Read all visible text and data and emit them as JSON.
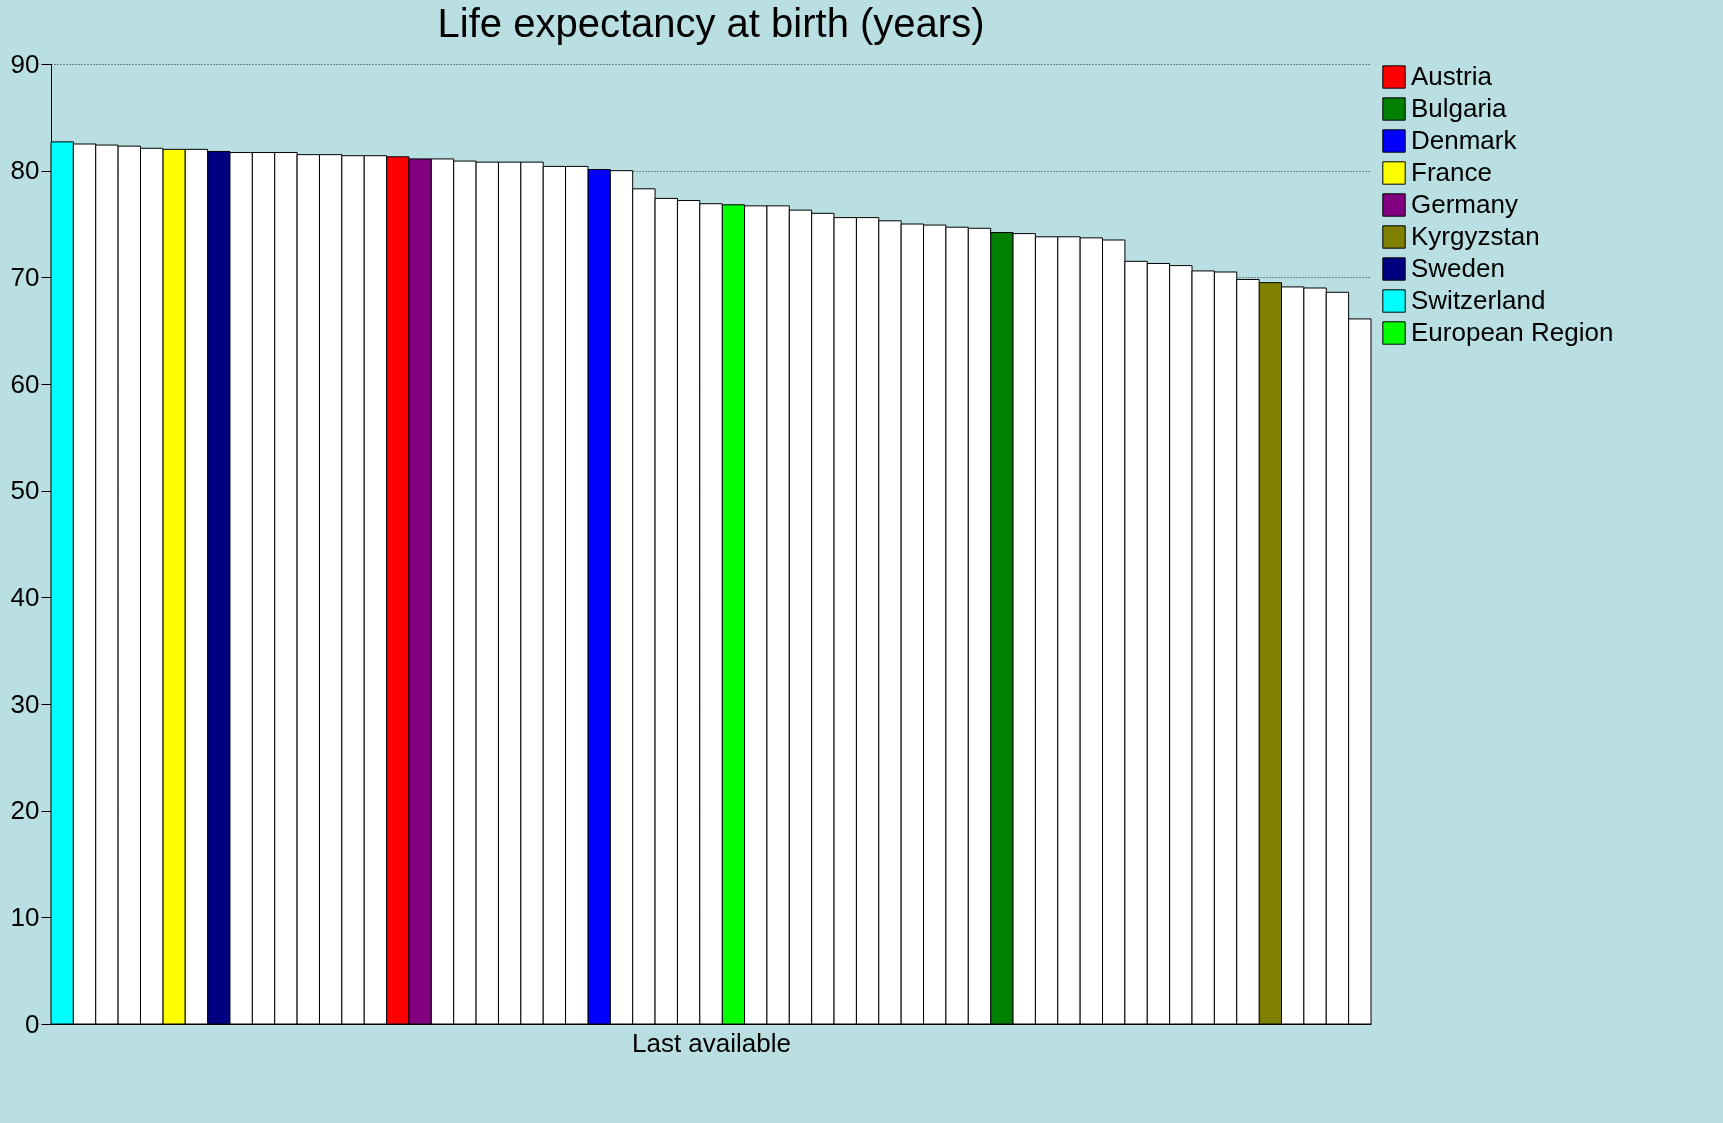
{
  "chart_data": {
    "type": "bar",
    "title": "Life expectancy at birth (years)",
    "xlabel": "Last available",
    "categories": [
      null,
      null,
      null,
      null,
      null,
      null,
      null,
      null,
      null,
      null,
      null,
      null,
      null,
      null,
      null,
      null,
      null,
      null,
      null,
      null,
      null,
      null,
      null,
      null,
      null,
      null,
      null,
      null,
      null,
      null,
      null,
      null,
      null,
      null,
      null,
      null,
      null,
      null,
      null,
      null,
      null,
      null,
      null,
      null,
      null,
      null,
      null,
      null,
      null,
      null,
      null,
      null,
      null,
      null,
      null,
      null,
      null,
      null,
      null
    ],
    "series": [
      {
        "name": "Austria",
        "color": "#ff0000",
        "values": [
          null,
          null,
          null,
          null,
          null,
          null,
          null,
          null,
          null,
          null,
          null,
          null,
          null,
          null,
          null,
          81.3,
          null,
          null,
          null,
          null,
          null,
          null,
          null,
          null,
          null,
          null,
          null,
          null,
          null,
          null,
          null,
          null,
          null,
          null,
          null,
          null,
          null,
          null,
          null,
          null,
          null,
          null,
          null,
          null,
          null,
          null,
          null,
          null,
          null,
          null,
          null,
          null,
          null,
          null,
          null,
          null,
          null,
          null,
          null
        ]
      },
      {
        "name": "Bulgaria",
        "color": "#008000",
        "values": [
          null,
          null,
          null,
          null,
          null,
          null,
          null,
          null,
          null,
          null,
          null,
          null,
          null,
          null,
          null,
          null,
          null,
          null,
          null,
          null,
          null,
          null,
          null,
          null,
          null,
          null,
          null,
          null,
          null,
          null,
          null,
          null,
          null,
          null,
          null,
          null,
          null,
          null,
          null,
          null,
          null,
          null,
          74.2,
          null,
          null,
          null,
          null,
          null,
          null,
          null,
          null,
          null,
          null,
          null,
          null,
          null,
          null,
          null,
          null
        ]
      },
      {
        "name": "Denmark",
        "color": "#0000ff",
        "values": [
          null,
          null,
          null,
          null,
          null,
          null,
          null,
          null,
          null,
          null,
          null,
          null,
          null,
          null,
          null,
          null,
          null,
          null,
          null,
          null,
          null,
          null,
          null,
          null,
          80.1,
          null,
          null,
          null,
          null,
          null,
          null,
          null,
          null,
          null,
          null,
          null,
          null,
          null,
          null,
          null,
          null,
          null,
          null,
          null,
          null,
          null,
          null,
          null,
          null,
          null,
          null,
          null,
          null,
          null,
          null,
          null,
          null,
          null,
          null
        ]
      },
      {
        "name": "France",
        "color": "#ffff00",
        "values": [
          null,
          null,
          null,
          null,
          null,
          82.0,
          null,
          null,
          null,
          null,
          null,
          null,
          null,
          null,
          null,
          null,
          null,
          null,
          null,
          null,
          null,
          null,
          null,
          null,
          null,
          null,
          null,
          null,
          null,
          null,
          null,
          null,
          null,
          null,
          null,
          null,
          null,
          null,
          null,
          null,
          null,
          null,
          null,
          null,
          null,
          null,
          null,
          null,
          null,
          null,
          null,
          null,
          null,
          null,
          null,
          null,
          null,
          null,
          null
        ]
      },
      {
        "name": "Germany",
        "color": "#800080",
        "values": [
          null,
          null,
          null,
          null,
          null,
          null,
          null,
          null,
          null,
          null,
          null,
          null,
          null,
          null,
          null,
          null,
          81.1,
          null,
          null,
          null,
          null,
          null,
          null,
          null,
          null,
          null,
          null,
          null,
          null,
          null,
          null,
          null,
          null,
          null,
          null,
          null,
          null,
          null,
          null,
          null,
          null,
          null,
          null,
          null,
          null,
          null,
          null,
          null,
          null,
          null,
          null,
          null,
          null,
          null,
          null,
          null,
          null,
          null,
          null
        ]
      },
      {
        "name": "Kyrgyzstan",
        "color": "#808000",
        "values": [
          null,
          null,
          null,
          null,
          null,
          null,
          null,
          null,
          null,
          null,
          null,
          null,
          null,
          null,
          null,
          null,
          null,
          null,
          null,
          null,
          null,
          null,
          null,
          null,
          null,
          null,
          null,
          null,
          null,
          null,
          null,
          null,
          null,
          null,
          null,
          null,
          null,
          null,
          null,
          null,
          null,
          null,
          null,
          null,
          null,
          null,
          null,
          null,
          null,
          null,
          null,
          null,
          null,
          null,
          69.5,
          null,
          null,
          null,
          null
        ]
      },
      {
        "name": "Sweden",
        "color": "#000080",
        "values": [
          null,
          null,
          null,
          null,
          null,
          null,
          null,
          81.8,
          null,
          null,
          null,
          null,
          null,
          null,
          null,
          null,
          null,
          null,
          null,
          null,
          null,
          null,
          null,
          null,
          null,
          null,
          null,
          null,
          null,
          null,
          null,
          null,
          null,
          null,
          null,
          null,
          null,
          null,
          null,
          null,
          null,
          null,
          null,
          null,
          null,
          null,
          null,
          null,
          null,
          null,
          null,
          null,
          null,
          null,
          null,
          null,
          null,
          null,
          null
        ]
      },
      {
        "name": "Switzerland",
        "color": "#00ffff",
        "values": [
          82.7,
          null,
          null,
          null,
          null,
          null,
          null,
          null,
          null,
          null,
          null,
          null,
          null,
          null,
          null,
          null,
          null,
          null,
          null,
          null,
          null,
          null,
          null,
          null,
          null,
          null,
          null,
          null,
          null,
          null,
          null,
          null,
          null,
          null,
          null,
          null,
          null,
          null,
          null,
          null,
          null,
          null,
          null,
          null,
          null,
          null,
          null,
          null,
          null,
          null,
          null,
          null,
          null,
          null,
          null,
          null,
          null,
          null,
          null
        ]
      },
      {
        "name": "European Region",
        "color": "#00ff00",
        "values": [
          null,
          null,
          null,
          null,
          null,
          null,
          null,
          null,
          null,
          null,
          null,
          null,
          null,
          null,
          null,
          null,
          null,
          null,
          null,
          null,
          null,
          null,
          null,
          null,
          null,
          null,
          null,
          null,
          null,
          null,
          76.8,
          null,
          null,
          null,
          null,
          null,
          null,
          null,
          null,
          null,
          null,
          null,
          null,
          null,
          null,
          null,
          null,
          null,
          null,
          null,
          null,
          null,
          null,
          null,
          null,
          null,
          null,
          null,
          null
        ]
      },
      {
        "color": "#ffffff",
        "values": [
          null,
          82.5,
          82.4,
          82.3,
          82.1,
          null,
          82.0,
          null,
          81.7,
          81.7,
          81.7,
          81.5,
          81.5,
          81.4,
          81.4,
          null,
          null,
          81.1,
          80.9,
          80.8,
          80.8,
          80.8,
          80.4,
          80.4,
          null,
          80.0,
          78.3,
          77.4,
          77.2,
          76.9,
          null,
          76.7,
          76.7,
          76.3,
          76.0,
          75.6,
          75.6,
          75.3,
          75.0,
          74.9,
          74.7,
          74.6,
          null,
          74.1,
          73.8,
          73.8,
          73.7,
          73.5,
          71.5,
          71.3,
          71.1,
          70.6,
          70.5,
          69.8,
          null,
          69.1,
          69.0,
          68.6,
          66.1
        ]
      }
    ],
    "ylim": [
      0,
      90
    ],
    "yticks": [
      0,
      10,
      20,
      30,
      40,
      50,
      60,
      70,
      80,
      90
    ],
    "grid": "y",
    "legend": "right"
  }
}
